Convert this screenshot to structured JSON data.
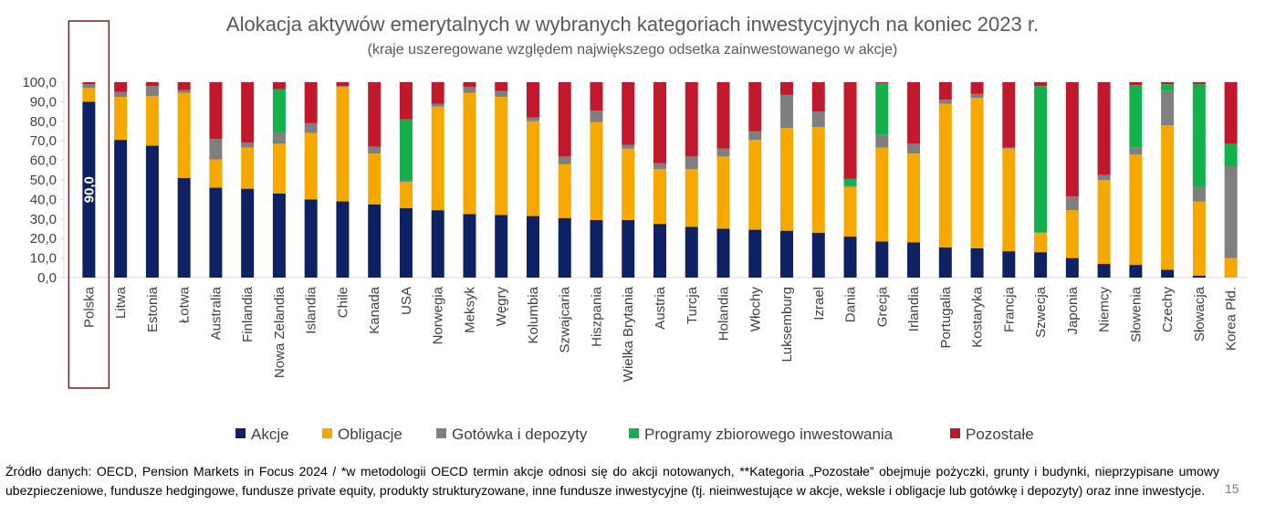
{
  "title": "Alokacja aktywów emerytalnych w wybranych kategoriach inwestycyjnych na koniec 2023 r.",
  "subtitle": "(kraje uszeregowane względem największego odsetka zainwestowanego w akcje)",
  "source_note": "Źródło danych: OECD, Pension Markets in Focus 2024 / *w metodologii OECD termin akcje odnosi się do akcji notowanych, **Kategoria „Pozostałe” obejmuje pożyczki, grunty i budynki, nieprzypisane umowy ubezpieczeniowe, fundusze hedgingowe, fundusze private equity, produkty strukturyzowane, inne fundusze inwestycyjne (tj. nieinwestujące w akcje, weksle i obligacje lub gotówkę i depozyty) oraz inne inwestycje.",
  "page_number": "15",
  "colors": {
    "Akcje": "#0d2163",
    "Obligacje": "#f5a800",
    "Gotowka": "#7f7f7f",
    "Programy": "#14b04c",
    "Pozostale": "#c0192d",
    "highlight_box": "#7b1c1c",
    "axis": "#d9d9d9"
  },
  "chart_data": {
    "type": "bar",
    "stacked": true,
    "title": "Alokacja aktywów emerytalnych w wybranych kategoriach inwestycyjnych na koniec 2023 r.",
    "subtitle": "(kraje uszeregowane względem największego odsetka zainwestowanego w akcje)",
    "ylim": [
      0,
      100
    ],
    "yticks": [
      "0,0",
      "10,0",
      "20,0",
      "30,0",
      "40,0",
      "50,0",
      "60,0",
      "70,0",
      "80,0",
      "90,0",
      "100,0"
    ],
    "grid": false,
    "legend_position": "bottom",
    "highlighted_category": "Polska",
    "data_labels": [
      {
        "category": "Polska",
        "series": "Akcje",
        "text": "90,0"
      }
    ],
    "categories": [
      "Polska",
      "Litwa",
      "Estonia",
      "Łotwa",
      "Australia",
      "Finlandia",
      "Nowa Zelandia",
      "Islandia",
      "Chile",
      "Kanada",
      "USA",
      "Norwegia",
      "Meksyk",
      "Węgry",
      "Kolumbia",
      "Szwajcaria",
      "Hiszpania",
      "Wielka Brytania",
      "Austria",
      "Turcja",
      "Holandia",
      "Włochy",
      "Luksemburg",
      "Izrael",
      "Dania",
      "Grecja",
      "Irlandia",
      "Portugalia",
      "Kostaryka",
      "Francja",
      "Szwecja",
      "Japonia",
      "Niemcy",
      "Słowenia",
      "Czechy",
      "Słowacja",
      "Korea Płd."
    ],
    "series": [
      {
        "name": "Akcje",
        "color": "#0d2163",
        "values": [
          90.0,
          70.5,
          67.5,
          51.0,
          46.0,
          45.5,
          43.0,
          40.0,
          39.0,
          37.5,
          35.5,
          34.5,
          32.5,
          32.0,
          31.5,
          30.5,
          29.5,
          29.5,
          27.5,
          26.0,
          25.0,
          24.5,
          24.0,
          23.0,
          21.0,
          18.5,
          18.0,
          15.5,
          15.0,
          13.5,
          13.0,
          10.0,
          7.0,
          6.5,
          4.0,
          1.0,
          0.0
        ]
      },
      {
        "name": "Obligacje",
        "color": "#f5a800",
        "values": [
          7.0,
          22.0,
          25.5,
          43.5,
          14.5,
          21.0,
          25.5,
          34.0,
          58.5,
          26.0,
          13.5,
          53.0,
          62.0,
          60.5,
          48.5,
          27.5,
          50.0,
          36.5,
          28.0,
          29.5,
          37.0,
          46.0,
          52.5,
          54.0,
          25.5,
          48.0,
          45.5,
          73.5,
          77.0,
          52.5,
          10.0,
          24.5,
          43.0,
          56.5,
          74.0,
          38.0,
          10.0
        ]
      },
      {
        "name": "Gotówka i depozyty",
        "color": "#7f7f7f",
        "values": [
          2.0,
          2.5,
          5.0,
          1.5,
          10.5,
          2.5,
          6.0,
          5.0,
          0.5,
          3.5,
          1.0,
          1.5,
          3.0,
          3.0,
          2.0,
          4.0,
          6.0,
          2.0,
          3.0,
          6.5,
          4.0,
          4.5,
          17.0,
          8.0,
          0.5,
          6.5,
          5.0,
          2.0,
          2.0,
          0.5,
          0.0,
          7.0,
          2.5,
          3.5,
          17.5,
          7.5,
          47.0
        ]
      },
      {
        "name": "Programy zbiorowego inwestowania",
        "color": "#14b04c",
        "values": [
          0.0,
          0.0,
          0.0,
          0.0,
          0.0,
          0.0,
          22.0,
          0.0,
          0.0,
          0.0,
          31.0,
          0.0,
          0.0,
          0.0,
          0.0,
          0.0,
          0.0,
          0.0,
          0.0,
          0.0,
          0.0,
          0.0,
          0.0,
          0.0,
          3.5,
          26.5,
          0.0,
          0.0,
          0.0,
          0.0,
          75.0,
          0.0,
          0.0,
          32.0,
          3.5,
          52.5,
          11.5
        ]
      },
      {
        "name": "Pozostałe",
        "color": "#c0192d",
        "values": [
          1.0,
          5.0,
          2.0,
          4.0,
          29.0,
          31.0,
          3.5,
          21.0,
          2.0,
          33.0,
          19.0,
          11.0,
          2.5,
          4.5,
          18.0,
          38.0,
          14.5,
          32.0,
          41.5,
          38.0,
          34.0,
          25.0,
          6.5,
          15.0,
          49.5,
          0.5,
          31.5,
          9.0,
          6.0,
          33.5,
          2.0,
          58.5,
          47.5,
          1.5,
          1.0,
          1.0,
          31.5
        ]
      }
    ]
  }
}
